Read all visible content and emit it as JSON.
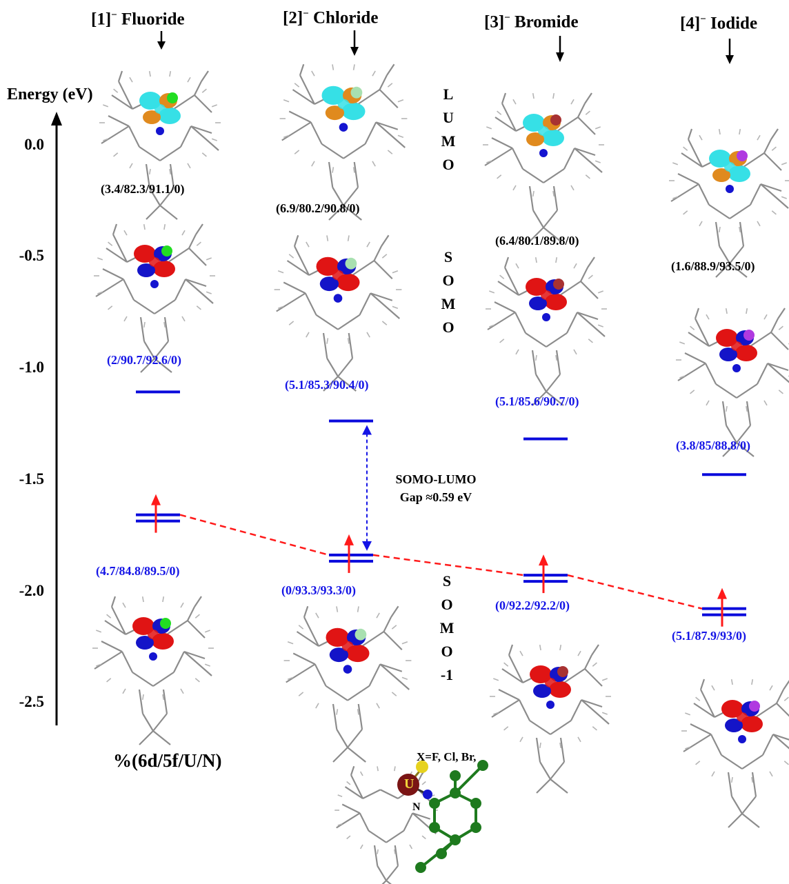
{
  "headers": [
    {
      "label": "[1]",
      "charge": "−",
      "name": "Fluoride"
    },
    {
      "label": "[2]",
      "charge": "−",
      "name": "Chloride"
    },
    {
      "label": "[3]",
      "charge": "−",
      "name": "Bromide"
    },
    {
      "label": "[4]",
      "charge": "−",
      "name": "Iodide"
    }
  ],
  "axis": {
    "label": "Energy (eV)",
    "ticks": [
      "0.0",
      "-0.5",
      "-1.0",
      "-1.5",
      "-2.0",
      "-2.5"
    ]
  },
  "orbital_words": {
    "lumo": [
      "L",
      "U",
      "M",
      "O"
    ],
    "somo": [
      "S",
      "O",
      "M",
      "O"
    ],
    "somo_minus_1": [
      "S",
      "O",
      "M",
      "O",
      "-1"
    ]
  },
  "compositions": {
    "lumo": [
      "(3.4/82.3/91.1/0)",
      "(6.9/80.2/90.8/0)",
      "(6.4/80.1/89.8/0)",
      "(1.6/88.9/93.5/0)"
    ],
    "somo": [
      "(2/90.7/92.6/0)",
      "(5.1/85.3/90.4/0)",
      "(5.1/85.6/90.7/0)",
      "(3.8/85/88.8/0)"
    ],
    "somo_minus_1": [
      "(4.7/84.8/89.5/0)",
      "(0/93.3/93.3/0)",
      "(0/92.2/92.2/0)",
      "(5.1/87.9/93/0)"
    ]
  },
  "gap": {
    "line1": "SOMO-LUMO",
    "line2": "Gap ≈0.59 eV"
  },
  "footer": {
    "composition_key": "%(6d/5f/U/N)",
    "halide_note": "X=F, Cl, Br,"
  },
  "structure_labels": {
    "metal": "U",
    "nitrogen": "N"
  },
  "chart_data": {
    "type": "energy-level-diagram",
    "ylabel": "Energy (eV)",
    "ylim": [
      -2.6,
      0.2
    ],
    "complexes": [
      "[1]− Fluoride",
      "[2]− Chloride",
      "[3]− Bromide",
      "[4]− Iodide"
    ],
    "somo_levels": [
      -1.1,
      -1.23,
      -1.31,
      -1.47
    ],
    "somo_minus_1_levels": [
      -1.65,
      -1.83,
      -1.92,
      -2.07
    ]
  },
  "colors": {
    "level": "#0a0adc",
    "electron": "#ff1a1a",
    "trend": "#ff1a1a",
    "gap_arrow": "#1414e6",
    "lumo_lobe_a": "#36e0e6",
    "lumo_lobe_b": "#e08a1e",
    "somo_lobe_a": "#e01414",
    "somo_lobe_b": "#1414c8",
    "frame": "#8c8c8c",
    "F": "#22dd22",
    "Cl": "#a8e0b0",
    "Br": "#a83232",
    "I": "#b03ae0",
    "ligand": "#1e7a1e"
  },
  "icons": [
    "down-arrow-icon",
    "electron-arrow-icon",
    "molecule-icon"
  ]
}
